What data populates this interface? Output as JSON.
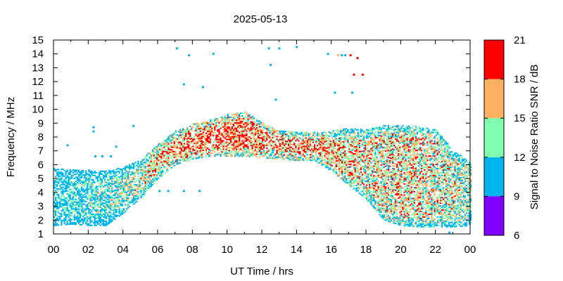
{
  "chart_data": {
    "type": "heatmap",
    "title": "2025-05-13",
    "xlabel": "UT Time / hrs",
    "ylabel": "Frequency / MHz",
    "xlim": [
      0,
      24
    ],
    "ylim": [
      1,
      15
    ],
    "x_tick_labels": [
      "00",
      "02",
      "04",
      "06",
      "08",
      "10",
      "12",
      "14",
      "16",
      "18",
      "20",
      "22",
      "00"
    ],
    "y_tick_labels": [
      "1",
      "2",
      "3",
      "4",
      "5",
      "6",
      "7",
      "8",
      "9",
      "10",
      "11",
      "12",
      "13",
      "14",
      "15"
    ],
    "colorbar": {
      "label": "Signal to Noise Ratio SNR / dB",
      "range": [
        6,
        21
      ],
      "tick_labels": [
        "6",
        "9",
        "12",
        "15",
        "18",
        "21"
      ],
      "bins": [
        {
          "from": 6,
          "to": 9,
          "color": "#8000ff"
        },
        {
          "from": 9,
          "to": 12,
          "color": "#00b4f0"
        },
        {
          "from": 12,
          "to": 15,
          "color": "#80ffb0"
        },
        {
          "from": 15,
          "to": 18,
          "color": "#ffb060"
        },
        {
          "from": 18,
          "to": 21,
          "color": "#ff0000"
        }
      ]
    },
    "envelope": {
      "hours": [
        0.0,
        1.0,
        2.0,
        3.0,
        4.0,
        5.0,
        6.0,
        7.0,
        8.0,
        9.0,
        10.0,
        11.0,
        12.0,
        13.0,
        14.0,
        15.0,
        16.0,
        17.0,
        18.0,
        19.0,
        20.0,
        21.0,
        22.0,
        23.0,
        24.0
      ],
      "f_low": [
        1.6,
        1.7,
        1.6,
        1.6,
        2.5,
        3.6,
        5.0,
        6.0,
        6.4,
        6.6,
        6.6,
        6.6,
        6.5,
        6.4,
        6.3,
        6.3,
        5.5,
        4.5,
        3.5,
        2.0,
        1.6,
        1.5,
        1.5,
        1.5,
        1.6
      ],
      "f_high": [
        5.7,
        5.6,
        5.6,
        5.5,
        5.8,
        6.3,
        7.5,
        8.4,
        8.9,
        9.2,
        9.6,
        9.8,
        9.0,
        8.4,
        8.3,
        8.3,
        8.4,
        8.6,
        8.5,
        8.8,
        8.8,
        8.7,
        8.5,
        7.0,
        6.2
      ],
      "snr_mid": [
        10.0,
        10.5,
        11.0,
        12.0,
        13.0,
        14.5,
        16.5,
        17.5,
        18.0,
        18.5,
        18.5,
        18.0,
        17.5,
        17.5,
        17.5,
        17.5,
        17.0,
        16.0,
        15.0,
        15.0,
        15.5,
        15.5,
        15.0,
        14.0,
        13.0
      ]
    },
    "outliers": [
      {
        "hour": 7.1,
        "freq": 14.4,
        "snr": 10
      },
      {
        "hour": 7.8,
        "freq": 13.9,
        "snr": 10
      },
      {
        "hour": 9.2,
        "freq": 14.0,
        "snr": 10
      },
      {
        "hour": 12.4,
        "freq": 14.4,
        "snr": 10
      },
      {
        "hour": 13.0,
        "freq": 14.4,
        "snr": 10
      },
      {
        "hour": 14.0,
        "freq": 14.5,
        "snr": 10
      },
      {
        "hour": 15.8,
        "freq": 14.0,
        "snr": 10
      },
      {
        "hour": 16.4,
        "freq": 13.9,
        "snr": 16
      },
      {
        "hour": 16.6,
        "freq": 13.9,
        "snr": 10
      },
      {
        "hour": 16.8,
        "freq": 13.9,
        "snr": 10
      },
      {
        "hour": 17.1,
        "freq": 13.9,
        "snr": 20
      },
      {
        "hour": 17.5,
        "freq": 13.7,
        "snr": 20
      },
      {
        "hour": 17.3,
        "freq": 12.5,
        "snr": 20
      },
      {
        "hour": 17.8,
        "freq": 12.5,
        "snr": 20
      },
      {
        "hour": 12.5,
        "freq": 13.2,
        "snr": 10
      },
      {
        "hour": 7.5,
        "freq": 11.8,
        "snr": 10
      },
      {
        "hour": 8.6,
        "freq": 11.6,
        "snr": 10
      },
      {
        "hour": 12.8,
        "freq": 10.7,
        "snr": 10
      },
      {
        "hour": 16.2,
        "freq": 11.2,
        "snr": 10
      },
      {
        "hour": 17.2,
        "freq": 11.2,
        "snr": 10
      },
      {
        "hour": 2.3,
        "freq": 8.7,
        "snr": 10
      },
      {
        "hour": 2.3,
        "freq": 8.4,
        "snr": 10
      },
      {
        "hour": 4.6,
        "freq": 8.8,
        "snr": 10
      },
      {
        "hour": 0.8,
        "freq": 7.4,
        "snr": 10
      },
      {
        "hour": 2.4,
        "freq": 6.6,
        "snr": 10
      },
      {
        "hour": 2.8,
        "freq": 6.6,
        "snr": 10
      },
      {
        "hour": 3.3,
        "freq": 6.6,
        "snr": 10
      },
      {
        "hour": 3.6,
        "freq": 7.3,
        "snr": 10
      },
      {
        "hour": 6.1,
        "freq": 4.1,
        "snr": 10
      },
      {
        "hour": 6.6,
        "freq": 4.1,
        "snr": 10
      },
      {
        "hour": 7.5,
        "freq": 4.1,
        "snr": 10
      },
      {
        "hour": 8.4,
        "freq": 4.1,
        "snr": 10
      },
      {
        "hour": 22.8,
        "freq": 1.1,
        "snr": 10
      }
    ]
  }
}
